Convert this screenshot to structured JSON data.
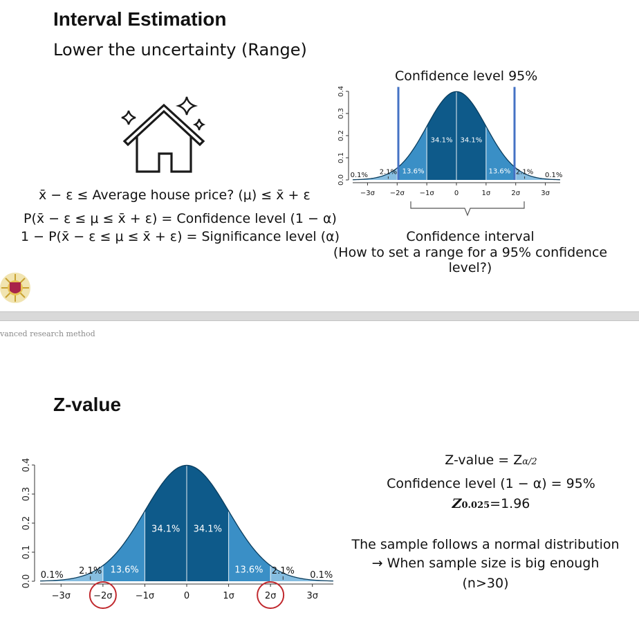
{
  "slide1": {
    "title": "Interval Estimation",
    "subtitle": "Lower the uncertainty (Range)",
    "icon": "house-sparkle-icon",
    "eq1": "x̄ − ε ≤  Average house price? (μ) ≤ x̄ + ε",
    "eq2": "P(x̄ − ε ≤ μ ≤ x̄ + ε) = Confidence level (1 − α)",
    "eq3": "1 − P(x̄ − ε ≤ μ ≤ x̄ + ε) = Significance level (α)",
    "chart_title": "Confidence level 95%",
    "ci_label": "Confidence interval",
    "ci_question": "(How to set a range for a 95% confidence level?)"
  },
  "footer_text": "vanced research method",
  "slide2": {
    "title": "Z-value",
    "z_line1": "Z-value = Z",
    "z_line1_sub": "α/2",
    "z_line2": "Confidence level (1 − α) = 95%",
    "z_line3_main": "Z",
    "z_line3_sub": "0.025",
    "z_line3_rest": "=1.96",
    "note1": "The sample follows a normal distribution",
    "note2": "→ When sample size is big enough",
    "note3": "(n>30)"
  },
  "chart_data": [
    {
      "type": "area",
      "title": "Confidence level 95%",
      "x_ticks": [
        "−3σ",
        "−2σ",
        "−1σ",
        "0",
        "1σ",
        "2σ",
        "3σ"
      ],
      "y_ticks": [
        "0.0",
        "0.1",
        "0.2",
        "0.3",
        "0.4"
      ],
      "ylim": [
        0,
        0.4
      ],
      "xlim": [
        -3.5,
        3.5
      ],
      "region_labels": [
        "0.1%",
        "2.1%",
        "13.6%",
        "34.1%",
        "34.1%",
        "13.6%",
        "2.1%",
        "0.1%"
      ],
      "markers": [
        -1.96,
        1.96
      ],
      "colors": {
        "inner": "#0e5a8a",
        "middle": "#3a8fc6",
        "outer": "#86bde0",
        "marker": "#4472c4"
      }
    },
    {
      "type": "area",
      "x_ticks": [
        "−3σ",
        "−2σ",
        "−1σ",
        "0",
        "1σ",
        "2σ",
        "3σ"
      ],
      "y_ticks": [
        "0.0",
        "0.1",
        "0.2",
        "0.3",
        "0.4"
      ],
      "ylim": [
        0,
        0.4
      ],
      "xlim": [
        -3.5,
        3.5
      ],
      "region_labels": [
        "0.1%",
        "2.1%",
        "13.6%",
        "34.1%",
        "34.1%",
        "13.6%",
        "2.1%",
        "0.1%"
      ],
      "circled_ticks": [
        "−2σ",
        "2σ"
      ],
      "colors": {
        "inner": "#0e5a8a",
        "middle": "#3a8fc6",
        "outer": "#86bde0",
        "circle": "#c0282d"
      }
    }
  ]
}
